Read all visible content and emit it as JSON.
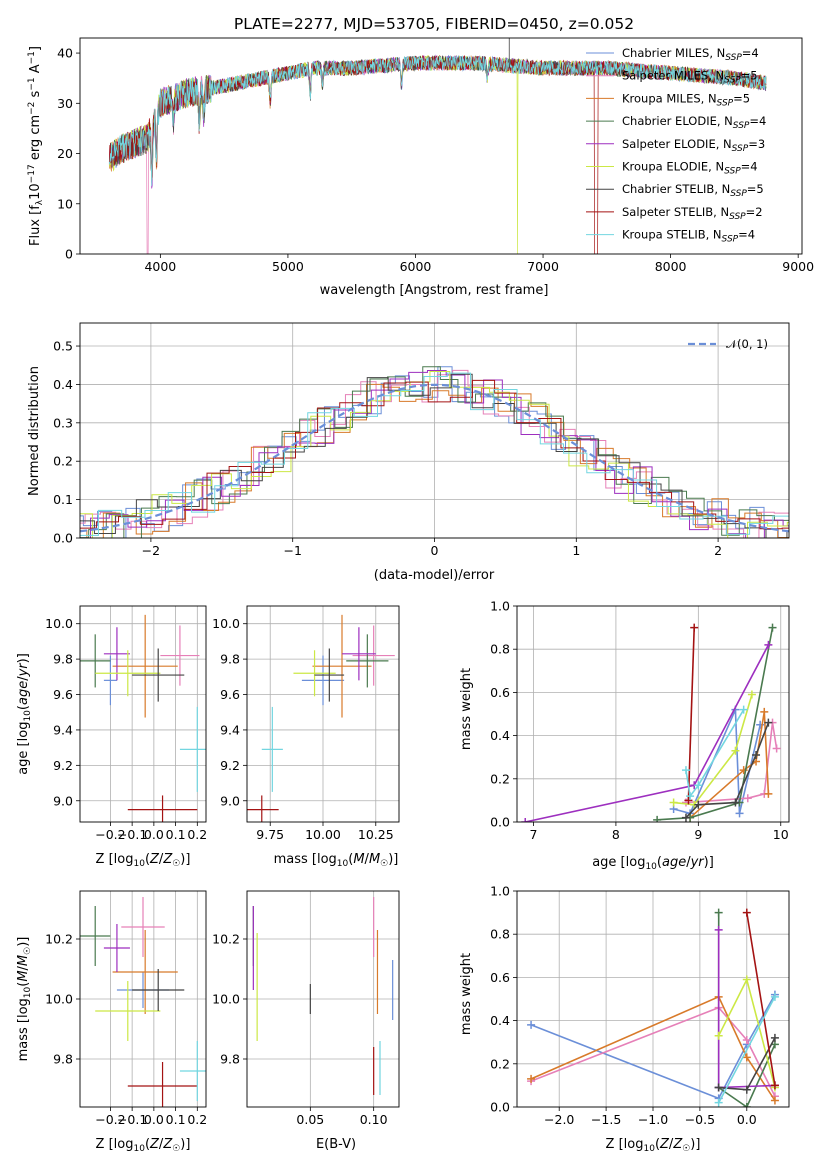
{
  "chart_data": [
    {
      "type": "line",
      "title": "PLATE=2277, MJD=53705, FIBERID=0450, z=0.052",
      "xlabel": "wavelength [Angstrom, rest frame]",
      "ylabel": "Flux [f_λ10^-17 erg cm^-2 s^-1 A^-1]",
      "xlim": [
        3370,
        9030
      ],
      "ylim": [
        0,
        43
      ],
      "xticks": [
        4000,
        5000,
        6000,
        7000,
        8000,
        9000
      ],
      "yticks": [
        0,
        10,
        20,
        30,
        40
      ],
      "legend": "top-right",
      "series": [
        {
          "name": "Chabrier MILES, N_SSP=4",
          "color": "#6b8fd8"
        },
        {
          "name": "Salpeter MILES, N_SSP=5",
          "color": "#e680b8"
        },
        {
          "name": "Kroupa MILES, N_SSP=5",
          "color": "#d87a2a"
        },
        {
          "name": "Chabrier ELODIE, N_SSP=4",
          "color": "#4a7a4f"
        },
        {
          "name": "Salpeter ELODIE, N_SSP=3",
          "color": "#9d2fbf"
        },
        {
          "name": "Kroupa ELODIE, N_SSP=4",
          "color": "#cce845"
        },
        {
          "name": "Chabrier STELIB, N_SSP=5",
          "color": "#444444"
        },
        {
          "name": "Salpeter STELIB, N_SSP=2",
          "color": "#a41313"
        },
        {
          "name": "Kroupa STELIB, N_SSP=4",
          "color": "#72d6e0"
        }
      ],
      "continuum": {
        "x": [
          3600,
          3700,
          3800,
          3900,
          4000,
          4200,
          4400,
          4600,
          4800,
          5000,
          5200,
          5500,
          6000,
          6500,
          7000,
          7500,
          8000,
          8500,
          8750
        ],
        "y": [
          19,
          21,
          22,
          23,
          30,
          32,
          33,
          34,
          35,
          36,
          37,
          37,
          38,
          38,
          37,
          37,
          36,
          35,
          34
        ]
      }
    },
    {
      "type": "step",
      "xlabel": "(data-model)/error",
      "ylabel": "Normed distribution",
      "xlim": [
        -2.5,
        2.5
      ],
      "ylim": [
        0,
        0.56
      ],
      "xticks": [
        -2,
        -1,
        0,
        1,
        2
      ],
      "yticks": [
        0.0,
        0.1,
        0.2,
        0.3,
        0.4,
        0.5
      ],
      "legend": "top-right",
      "reference": {
        "name": "𝒩(0, 1)",
        "color": "#6b8fd8"
      }
    },
    {
      "type": "errorbar",
      "xlabel": "Z [log10(Z/Z☉)]",
      "ylabel": "age  [log10(age/yr)]",
      "xlim": [
        -0.34,
        0.24
      ],
      "ylim": [
        8.88,
        10.1
      ],
      "xticks": [
        -0.2,
        -0.1,
        0.0,
        0.1,
        0.2
      ],
      "yticks": [
        9.0,
        9.2,
        9.4,
        9.6,
        9.8,
        10.0
      ],
      "points": [
        {
          "x": -0.2,
          "y": 9.68,
          "xerr": 0.03,
          "yerr": 0.14,
          "c": "#6b8fd8"
        },
        {
          "x": 0.12,
          "y": 9.82,
          "xerr": 0.09,
          "yerr": 0.17,
          "c": "#e680b8"
        },
        {
          "x": -0.04,
          "y": 9.76,
          "xerr": 0.15,
          "yerr": 0.29,
          "c": "#d87a2a"
        },
        {
          "x": -0.27,
          "y": 9.79,
          "xerr": 0.07,
          "yerr": 0.15,
          "c": "#4a7a4f"
        },
        {
          "x": -0.17,
          "y": 9.83,
          "xerr": 0.06,
          "yerr": 0.15,
          "c": "#9d2fbf"
        },
        {
          "x": -0.12,
          "y": 9.72,
          "xerr": 0.15,
          "yerr": 0.13,
          "c": "#cce845"
        },
        {
          "x": 0.02,
          "y": 9.71,
          "xerr": 0.12,
          "yerr": 0.15,
          "c": "#444444"
        },
        {
          "x": 0.04,
          "y": 8.95,
          "xerr": 0.16,
          "yerr": 0.08,
          "c": "#a41313"
        },
        {
          "x": 0.2,
          "y": 9.29,
          "xerr": 0.08,
          "yerr": 0.24,
          "c": "#72d6e0"
        }
      ]
    },
    {
      "type": "errorbar",
      "xlabel": "mass [log10(M/M☉)]",
      "xlim": [
        9.64,
        10.36
      ],
      "ylim": [
        8.88,
        10.1
      ],
      "xticks": [
        9.75,
        10.0,
        10.25
      ],
      "yticks": [
        9.0,
        9.2,
        9.4,
        9.6,
        9.8,
        10.0
      ],
      "points": [
        {
          "x": 10.0,
          "y": 9.68,
          "xerr": 0.1,
          "yerr": 0.14,
          "c": "#6b8fd8"
        },
        {
          "x": 10.24,
          "y": 9.82,
          "xerr": 0.1,
          "yerr": 0.17,
          "c": "#e680b8"
        },
        {
          "x": 10.09,
          "y": 9.76,
          "xerr": 0.14,
          "yerr": 0.29,
          "c": "#d87a2a"
        },
        {
          "x": 10.21,
          "y": 9.79,
          "xerr": 0.1,
          "yerr": 0.15,
          "c": "#4a7a4f"
        },
        {
          "x": 10.17,
          "y": 9.83,
          "xerr": 0.08,
          "yerr": 0.15,
          "c": "#9d2fbf"
        },
        {
          "x": 9.96,
          "y": 9.72,
          "xerr": 0.1,
          "yerr": 0.13,
          "c": "#cce845"
        },
        {
          "x": 10.03,
          "y": 9.71,
          "xerr": 0.07,
          "yerr": 0.15,
          "c": "#444444"
        },
        {
          "x": 9.71,
          "y": 8.95,
          "xerr": 0.08,
          "yerr": 0.08,
          "c": "#a41313"
        },
        {
          "x": 9.76,
          "y": 9.29,
          "xerr": 0.05,
          "yerr": 0.24,
          "c": "#72d6e0"
        }
      ]
    },
    {
      "type": "line",
      "xlabel": "age  [log10(age/yr)]",
      "ylabel": "mass weight",
      "xlim": [
        6.8,
        10.1
      ],
      "ylim": [
        0.0,
        1.0
      ],
      "xticks": [
        7,
        8,
        9,
        10
      ],
      "yticks": [
        0.0,
        0.2,
        0.4,
        0.6,
        0.8,
        1.0
      ],
      "series": [
        {
          "c": "#6b8fd8",
          "x": [
            8.7,
            8.9,
            9.45,
            9.5,
            9.75
          ],
          "y": [
            0.06,
            0.04,
            0.52,
            0.04,
            0.45
          ]
        },
        {
          "c": "#e680b8",
          "x": [
            8.85,
            9.6,
            9.8,
            9.9,
            9.95
          ],
          "y": [
            0.09,
            0.11,
            0.13,
            0.46,
            0.34
          ]
        },
        {
          "c": "#d87a2a",
          "x": [
            8.9,
            9.55,
            9.7,
            9.8,
            9.85
          ],
          "y": [
            0.02,
            0.24,
            0.28,
            0.51,
            0.13
          ]
        },
        {
          "c": "#4a7a4f",
          "x": [
            8.5,
            8.9,
            9.5,
            9.9
          ],
          "y": [
            0.01,
            0.02,
            0.09,
            0.9
          ]
        },
        {
          "c": "#9d2fbf",
          "x": [
            6.9,
            8.95,
            9.85
          ],
          "y": [
            0.0,
            0.17,
            0.82
          ]
        },
        {
          "c": "#cce845",
          "x": [
            8.7,
            8.95,
            9.45,
            9.65
          ],
          "y": [
            0.09,
            0.08,
            0.33,
            0.59
          ]
        },
        {
          "c": "#444444",
          "x": [
            8.85,
            9.0,
            9.45,
            9.7,
            9.85
          ],
          "y": [
            0.02,
            0.08,
            0.09,
            0.31,
            0.46
          ]
        },
        {
          "c": "#a41313",
          "x": [
            8.88,
            8.95
          ],
          "y": [
            0.1,
            0.9
          ]
        },
        {
          "c": "#72d6e0",
          "x": [
            8.85,
            8.9,
            9.0,
            9.55
          ],
          "y": [
            0.24,
            0.12,
            0.17,
            0.52
          ]
        }
      ]
    },
    {
      "type": "errorbar",
      "xlabel": "Z [log10(Z/Z☉)]",
      "ylabel": "mass [log10(M/M☉)]",
      "xlim": [
        -0.34,
        0.24
      ],
      "ylim": [
        9.64,
        10.36
      ],
      "xticks": [
        -0.2,
        -0.1,
        0.0,
        0.1,
        0.2
      ],
      "yticks": [
        9.8,
        10.0,
        10.2
      ],
      "points": [
        {
          "x": -0.05,
          "y": 10.03,
          "xerr": 0.12,
          "yerr": 0.06,
          "c": "#6b8fd8"
        },
        {
          "x": -0.05,
          "y": 10.24,
          "xerr": 0.1,
          "yerr": 0.1,
          "c": "#e680b8"
        },
        {
          "x": -0.04,
          "y": 10.09,
          "xerr": 0.15,
          "yerr": 0.14,
          "c": "#d87a2a"
        },
        {
          "x": -0.27,
          "y": 10.21,
          "xerr": 0.07,
          "yerr": 0.1,
          "c": "#4a7a4f"
        },
        {
          "x": -0.17,
          "y": 10.17,
          "xerr": 0.06,
          "yerr": 0.08,
          "c": "#9d2fbf"
        },
        {
          "x": -0.12,
          "y": 9.96,
          "xerr": 0.15,
          "yerr": 0.1,
          "c": "#cce845"
        },
        {
          "x": 0.02,
          "y": 10.03,
          "xerr": 0.12,
          "yerr": 0.07,
          "c": "#444444"
        },
        {
          "x": 0.04,
          "y": 9.71,
          "xerr": 0.16,
          "yerr": 0.08,
          "c": "#a41313"
        },
        {
          "x": 0.2,
          "y": 9.76,
          "xerr": 0.08,
          "yerr": 0.1,
          "c": "#72d6e0"
        }
      ]
    },
    {
      "type": "errorbar",
      "xlabel": "E(B-V)",
      "xlim": [
        0.0,
        0.12
      ],
      "ylim": [
        9.64,
        10.36
      ],
      "xticks": [
        0.05,
        0.1
      ],
      "yticks": [
        9.8,
        10.0,
        10.2
      ],
      "points": [
        {
          "x": 0.115,
          "y": 10.03,
          "xerr": 0.0,
          "yerr": 0.1,
          "c": "#6b8fd8"
        },
        {
          "x": 0.1,
          "y": 10.24,
          "xerr": 0.0,
          "yerr": 0.1,
          "c": "#e680b8"
        },
        {
          "x": 0.103,
          "y": 10.09,
          "xerr": 0.0,
          "yerr": 0.14,
          "c": "#d87a2a"
        },
        {
          "x": 0.005,
          "y": 10.21,
          "xerr": 0.0,
          "yerr": 0.1,
          "c": "#4a7a4f"
        },
        {
          "x": 0.005,
          "y": 10.17,
          "xerr": 0.0,
          "yerr": 0.14,
          "c": "#9d2fbf"
        },
        {
          "x": 0.008,
          "y": 10.04,
          "xerr": 0.0,
          "yerr": 0.18,
          "c": "#cce845"
        },
        {
          "x": 0.05,
          "y": 10.0,
          "xerr": 0.0,
          "yerr": 0.05,
          "c": "#444444"
        },
        {
          "x": 0.1,
          "y": 9.76,
          "xerr": 0.0,
          "yerr": 0.08,
          "c": "#a41313"
        },
        {
          "x": 0.105,
          "y": 9.77,
          "xerr": 0.0,
          "yerr": 0.09,
          "c": "#72d6e0"
        }
      ]
    },
    {
      "type": "line",
      "xlabel": "Z [log10(Z/Z☉)]",
      "ylabel": "mass weight",
      "xlim": [
        -2.45,
        0.45
      ],
      "ylim": [
        0.0,
        1.0
      ],
      "xticks": [
        -2.0,
        -1.5,
        -1.0,
        -0.5,
        0.0
      ],
      "yticks": [
        0.0,
        0.2,
        0.4,
        0.6,
        0.8,
        1.0
      ],
      "series": [
        {
          "c": "#6b8fd8",
          "x": [
            -2.3,
            -0.3,
            0.0,
            0.3
          ],
          "y": [
            0.38,
            0.04,
            0.29,
            0.52
          ]
        },
        {
          "c": "#e680b8",
          "x": [
            -2.3,
            -0.3,
            0.0,
            0.3
          ],
          "y": [
            0.12,
            0.46,
            0.31,
            0.05
          ]
        },
        {
          "c": "#d87a2a",
          "x": [
            -2.3,
            -0.3,
            0.0,
            0.3
          ],
          "y": [
            0.13,
            0.51,
            0.23,
            0.03
          ]
        },
        {
          "c": "#4a7a4f",
          "x": [
            -0.3,
            -0.3,
            0.0,
            0.3
          ],
          "y": [
            0.9,
            0.09,
            0.0,
            0.29
          ]
        },
        {
          "c": "#9d2fbf",
          "x": [
            -0.3,
            -0.3,
            0.3
          ],
          "y": [
            0.82,
            0.09,
            0.1
          ]
        },
        {
          "c": "#cce845",
          "x": [
            -0.3,
            0.0,
            0.3
          ],
          "y": [
            0.33,
            0.59,
            0.09
          ]
        },
        {
          "c": "#444444",
          "x": [
            -0.3,
            0.0,
            0.3
          ],
          "y": [
            0.09,
            0.08,
            0.32
          ]
        },
        {
          "c": "#a41313",
          "x": [
            0.0,
            0.3
          ],
          "y": [
            0.9,
            0.1
          ]
        },
        {
          "c": "#72d6e0",
          "x": [
            -0.3,
            0.3
          ],
          "y": [
            0.02,
            0.51
          ]
        }
      ]
    }
  ]
}
